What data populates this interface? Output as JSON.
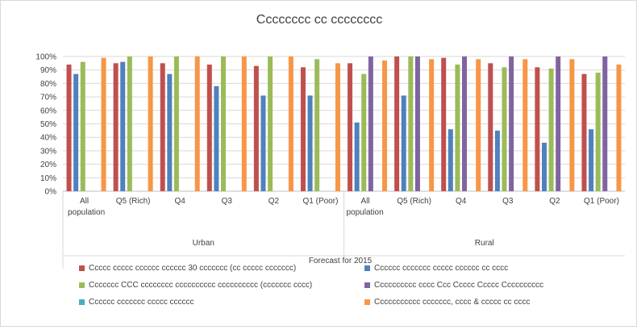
{
  "chart_data": {
    "type": "bar",
    "title": "Cccccccc cc cccccccc",
    "xlabel": "Forecast for 2015",
    "ylim": [
      0,
      100
    ],
    "y_ticks": [
      "0%",
      "10%",
      "20%",
      "30%",
      "40%",
      "50%",
      "60%",
      "70%",
      "80%",
      "90%",
      "100%"
    ],
    "gridlines": true,
    "legend_position": "bottom",
    "groups": [
      {
        "label": "Urban",
        "categories": [
          "All\npopulation",
          "Q5 (Rich)",
          "Q4",
          "Q3",
          "Q2",
          "Q1 (Poor)"
        ]
      },
      {
        "label": "Rural",
        "categories": [
          "All\npopulation",
          "Q5 (Rich)",
          "Q4",
          "Q3",
          "Q2",
          "Q1 (Poor)"
        ]
      }
    ],
    "series": [
      {
        "name": "Ccccc ccccc cccccc cccccc 30 ccccccc (cc ccccc ccccccc)",
        "color": "#c0504d",
        "values": [
          94,
          95,
          95,
          94,
          93,
          92,
          95,
          100,
          99,
          95,
          92,
          87
        ]
      },
      {
        "name": "Cccccc ccccccc ccccc cccccc cc cccc",
        "color": "#4f81bd",
        "values": [
          87,
          96,
          87,
          78,
          71,
          71,
          51,
          71,
          46,
          45,
          36,
          46
        ]
      },
      {
        "name": "Ccccccc CCC cccccccc cccccccccc cccccccccc (ccccccc cccc)",
        "color": "#9bbb59",
        "values": [
          96,
          100,
          100,
          100,
          100,
          98,
          87,
          100,
          94,
          92,
          91,
          88
        ]
      },
      {
        "name": "Cccccccccc cccc Ccc Ccccc Ccccc Cccccccccc",
        "color": "#8064a2",
        "values": [
          null,
          null,
          null,
          null,
          null,
          null,
          100,
          100,
          100,
          100,
          100,
          100
        ]
      },
      {
        "name": "Cccccc ccccccc ccccc cccccc",
        "color": "#4bacc6",
        "values": [
          null,
          null,
          null,
          null,
          null,
          null,
          null,
          null,
          null,
          null,
          null,
          null
        ]
      },
      {
        "name": "Ccccccccccc ccccccc, cccc & ccccc cc cccc",
        "color": "#f79646",
        "values": [
          99,
          100,
          100,
          100,
          100,
          95,
          97,
          98,
          98,
          98,
          98,
          94
        ]
      }
    ]
  }
}
